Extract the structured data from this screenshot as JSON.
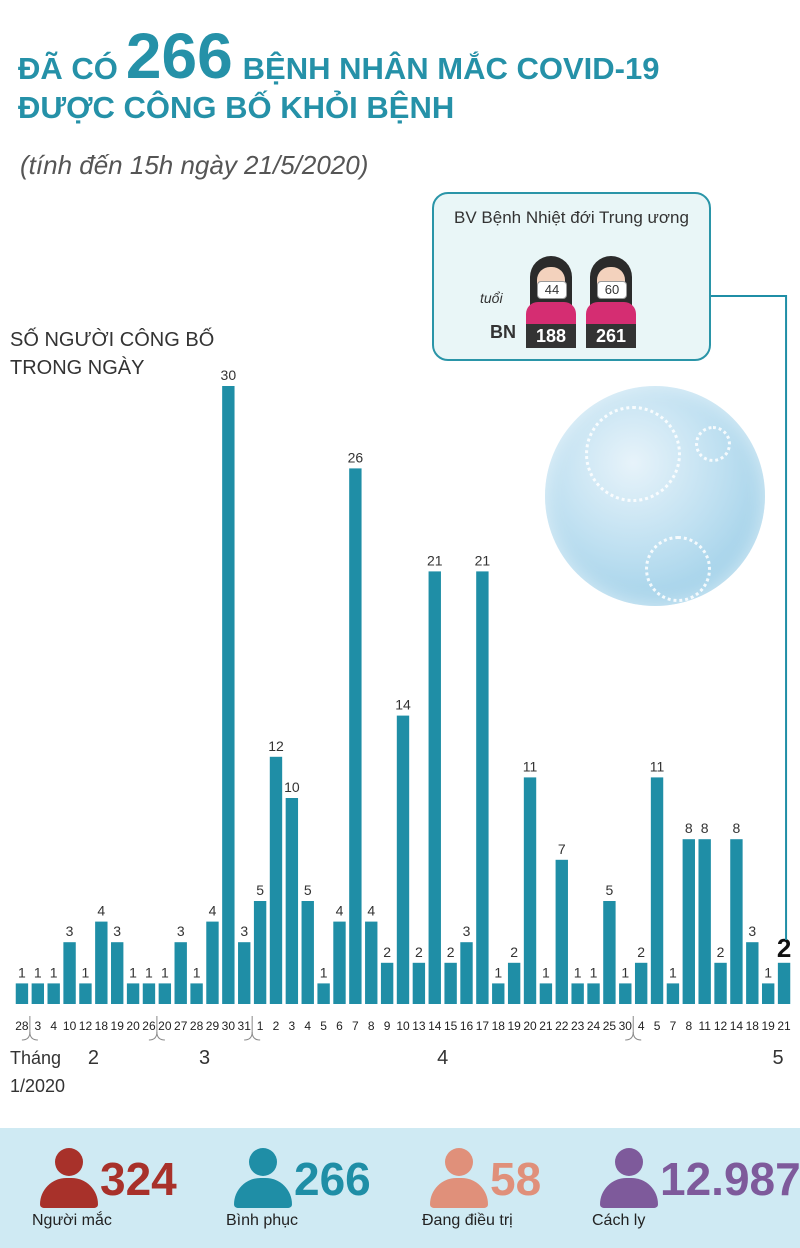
{
  "header": {
    "title_pre": "ĐÃ CÓ",
    "title_number": "266",
    "title_post": "BỆNH NHÂN MẮC COVID-19",
    "title_line2": "ĐƯỢC CÔNG BỐ KHỎI BỆNH",
    "subtitle": "(tính đến 15h ngày 21/5/2020)"
  },
  "y_label_line1": "SỐ NGƯỜI CÔNG BỐ",
  "y_label_line2": "TRONG NGÀY",
  "callout": {
    "hospital": "BV Bệnh Nhiệt đới Trung ương",
    "age_label": "tuổi",
    "patient_label": "BN",
    "patients": [
      {
        "age": "44",
        "id": "188"
      },
      {
        "age": "60",
        "id": "261"
      }
    ]
  },
  "chart_data": {
    "type": "bar",
    "title": "",
    "ylabel": "SỐ NGƯỜI CÔNG BỐ TRONG NGÀY",
    "categories": [
      "28",
      "3",
      "4",
      "10",
      "12",
      "18",
      "19",
      "20",
      "26",
      "20",
      "27",
      "28",
      "29",
      "30",
      "31",
      "1",
      "2",
      "3",
      "4",
      "5",
      "6",
      "7",
      "8",
      "9",
      "10",
      "13",
      "14",
      "15",
      "16",
      "17",
      "18",
      "19",
      "20",
      "21",
      "22",
      "23",
      "24",
      "25",
      "30",
      "4",
      "5",
      "7",
      "8",
      "11",
      "12",
      "14",
      "18",
      "19",
      "21"
    ],
    "values": [
      1,
      1,
      1,
      3,
      1,
      4,
      3,
      1,
      1,
      1,
      3,
      1,
      4,
      30,
      3,
      5,
      12,
      10,
      5,
      1,
      4,
      26,
      4,
      2,
      14,
      2,
      21,
      2,
      3,
      21,
      1,
      2,
      11,
      1,
      7,
      1,
      1,
      5,
      1,
      2,
      11,
      1,
      8,
      8,
      2,
      8,
      3,
      1,
      2
    ],
    "months": [
      {
        "label": "Tháng\n1/2020",
        "first_index": 0
      },
      {
        "label": "2",
        "first_index": 1
      },
      {
        "label": "3",
        "first_index": 9
      },
      {
        "label": "4",
        "first_index": 15
      },
      {
        "label": "5",
        "first_index": 39
      }
    ],
    "highlight_index": 48,
    "bar_color": "#1f8ea6",
    "highlight_label_color": "#111111"
  },
  "summary": [
    {
      "value": "324",
      "label": "Người mắc",
      "color": "#a8312a"
    },
    {
      "value": "266",
      "label": "Bình phục",
      "color": "#1f8ea6"
    },
    {
      "value": "58",
      "label": "Đang điều trị",
      "color": "#e0907a"
    },
    {
      "value": "12.987",
      "label": "Cách ly",
      "color": "#7e5a9b"
    }
  ]
}
